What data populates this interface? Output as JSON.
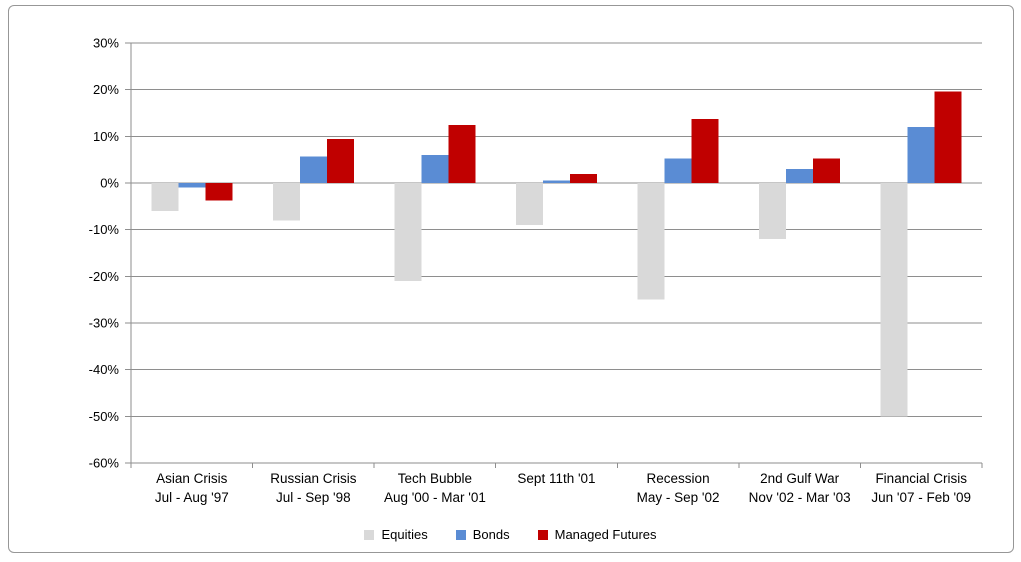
{
  "chart": {
    "frame_border_color": "#979797",
    "background_color": "#ffffff"
  },
  "chart_data": {
    "type": "bar",
    "title": "",
    "xlabel": "",
    "ylabel": "",
    "grid": true,
    "legend_position": "bottom",
    "categories": [
      {
        "name": "Asian Crisis",
        "period": "Jul - Aug '97"
      },
      {
        "name": "Russian Crisis",
        "period": "Jul - Sep '98"
      },
      {
        "name": "Tech Bubble",
        "period": "Aug '00 - Mar '01"
      },
      {
        "name": "Sept 11th '01",
        "period": ""
      },
      {
        "name": "Recession",
        "period": "May - Sep '02"
      },
      {
        "name": "2nd Gulf War",
        "period": "Nov '02 - Mar '03"
      },
      {
        "name": "Financial Crisis",
        "period": "Jun '07 - Feb '09"
      }
    ],
    "series": [
      {
        "name": "Equities",
        "color": "#d9d9d9",
        "values": [
          -6,
          -8,
          -21,
          -9,
          -25,
          -12,
          -50
        ]
      },
      {
        "name": "Bonds",
        "color": "#5a8cd4",
        "values": [
          -1,
          5.7,
          6,
          0.5,
          5.2,
          3,
          12
        ]
      },
      {
        "name": "Managed Futures",
        "color": "#c00000",
        "values": [
          -3.8,
          9.4,
          12.4,
          1.9,
          13.7,
          5.3,
          19.6
        ]
      }
    ],
    "y_axis": {
      "unit": "%",
      "ylim": [
        -60,
        30
      ],
      "grid_color": "#8e8e8e",
      "ticks": [
        {
          "label": "30%",
          "value": 30
        },
        {
          "label": "20%",
          "value": 20
        },
        {
          "label": "10%",
          "value": 10
        },
        {
          "label": "0%",
          "value": 0
        },
        {
          "label": "-10%",
          "value": -10
        },
        {
          "label": "-20%",
          "value": -20
        },
        {
          "label": "-30%",
          "value": -30
        },
        {
          "label": "-40%",
          "value": -40
        },
        {
          "label": "-50%",
          "value": -50
        },
        {
          "label": "-60%",
          "value": -60
        }
      ]
    }
  }
}
